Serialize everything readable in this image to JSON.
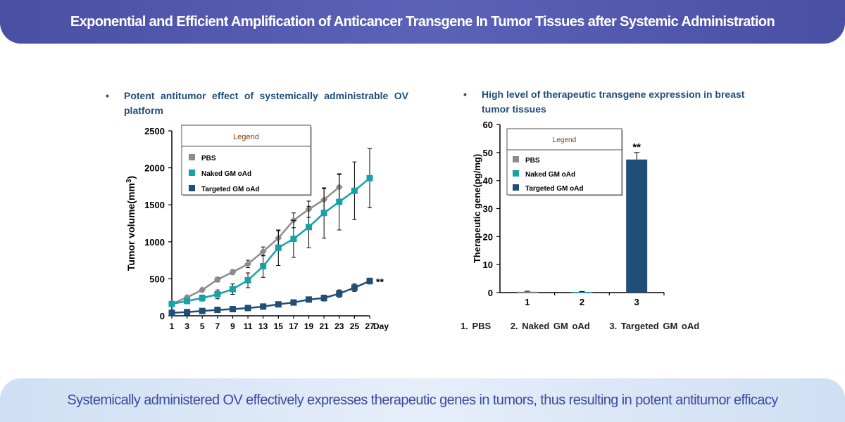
{
  "header": {
    "title": "Exponential and Efficient Amplification of Anticancer Transgene In Tumor Tissues after Systemic Administration"
  },
  "footer": {
    "text": "Systemically administered OV effectively expresses therapeutic genes in tumors, thus resulting in potent antitumor efficacy"
  },
  "left_panel": {
    "bullet_symbol": "•",
    "bullet_text": "Potent antitumor effect of systemically administrable OV platform"
  },
  "right_panel": {
    "bullet_symbol": "•",
    "bullet_text": "High level of therapeutic transgene expression in breast tumor tissues",
    "caption": [
      "1. PBS",
      "2. Naked GM oAd",
      "3. Targeted GM oAd"
    ]
  },
  "colors": {
    "pbs": "#8c8c8c",
    "naked": "#17a2a8",
    "targeted": "#1f4e79",
    "header": "#4a4fa3",
    "footer_text": "#3c4aa0"
  },
  "chart_data": [
    {
      "type": "line",
      "title": "",
      "xlabel": "Day",
      "ylabel": "Tumor volume(mm³)",
      "xlim": [
        1,
        27
      ],
      "ylim": [
        0,
        2500
      ],
      "x_ticks": [
        1,
        3,
        5,
        7,
        9,
        11,
        13,
        15,
        17,
        19,
        21,
        23,
        25,
        27
      ],
      "y_ticks": [
        0,
        500,
        1000,
        1500,
        2000,
        2500
      ],
      "legend_title": "Legend",
      "legend_position": "top-left",
      "significance_label": "**",
      "series": [
        {
          "name": "PBS",
          "color": "#8c8c8c",
          "marker": "diamond",
          "x": [
            1,
            3,
            5,
            7,
            9,
            11,
            13,
            15,
            17,
            19,
            21,
            23
          ],
          "y": [
            160,
            250,
            350,
            490,
            590,
            700,
            870,
            1050,
            1290,
            1440,
            1570,
            1740
          ],
          "err": [
            10,
            20,
            25,
            30,
            30,
            50,
            60,
            100,
            100,
            110,
            150,
            170
          ]
        },
        {
          "name": "Naked GM oAd",
          "color": "#17a2a8",
          "marker": "square",
          "x": [
            1,
            3,
            5,
            7,
            9,
            11,
            13,
            15,
            17,
            19,
            21,
            23,
            25,
            27
          ],
          "y": [
            160,
            200,
            240,
            290,
            360,
            480,
            670,
            920,
            1040,
            1200,
            1390,
            1540,
            1690,
            1860
          ],
          "err": [
            20,
            30,
            40,
            60,
            70,
            100,
            150,
            240,
            250,
            280,
            340,
            380,
            390,
            400
          ]
        },
        {
          "name": "Targeted GM oAd",
          "color": "#1f4e79",
          "marker": "square",
          "x": [
            1,
            3,
            5,
            7,
            9,
            11,
            13,
            15,
            17,
            19,
            21,
            23,
            25,
            27
          ],
          "y": [
            40,
            50,
            65,
            80,
            90,
            105,
            125,
            155,
            180,
            220,
            240,
            300,
            380,
            470
          ],
          "err": [
            5,
            8,
            10,
            10,
            12,
            15,
            18,
            20,
            25,
            30,
            40,
            50,
            50,
            40
          ]
        }
      ]
    },
    {
      "type": "bar",
      "title": "",
      "xlabel": "",
      "ylabel": "Therapeutic gene(pg/mg)",
      "ylim": [
        0,
        60
      ],
      "y_ticks": [
        0,
        10,
        20,
        30,
        40,
        50,
        60
      ],
      "categories": [
        "1",
        "2",
        "3"
      ],
      "legend_title": "Legend",
      "legend_position": "top-left",
      "significance_label": "**",
      "series": [
        {
          "name": "PBS",
          "color": "#8c8c8c"
        },
        {
          "name": "Naked GM oAd",
          "color": "#17a2a8"
        },
        {
          "name": "Targeted GM oAd",
          "color": "#1f4e79"
        }
      ],
      "values": [
        0.3,
        0.2,
        47.5
      ],
      "err": [
        0.2,
        0.2,
        2.5
      ],
      "bar_colors": [
        "#8c8c8c",
        "#17a2a8",
        "#1f4e79"
      ]
    }
  ]
}
